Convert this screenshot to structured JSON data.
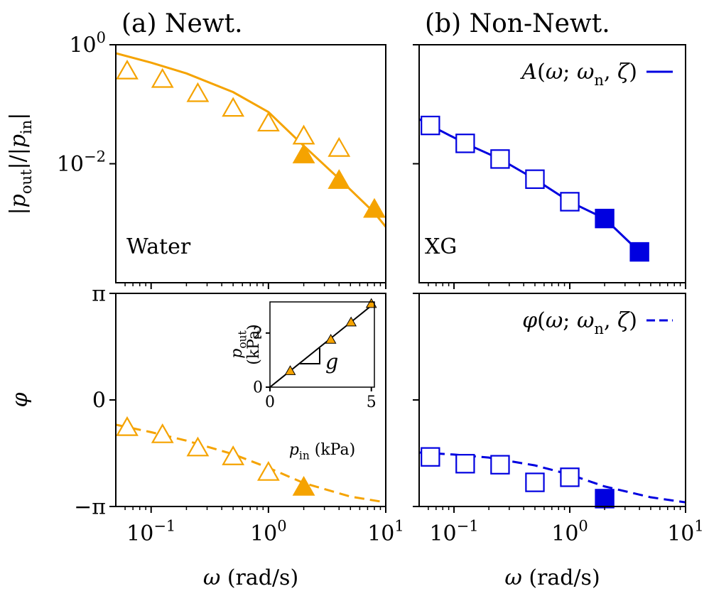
{
  "chart_data": [
    {
      "type": "line",
      "title": "(a) Newt.",
      "xscale": "log",
      "yscale": "log",
      "xlim": [
        0.05,
        10
      ],
      "ylim": [
        0.0001,
        1
      ],
      "xticks": [
        0.1,
        1,
        10
      ],
      "xtick_labels": false,
      "xminor": [
        0.06,
        0.07,
        0.08,
        0.09,
        0.2,
        0.3,
        0.4,
        0.5,
        0.6,
        0.7,
        0.8,
        0.9,
        2,
        3,
        4,
        5,
        6,
        7,
        8,
        9
      ],
      "yticks": [
        {
          "value": 1,
          "label": [
            "10",
            {
              "sup": "0"
            }
          ]
        },
        {
          "value": 0.01,
          "label": [
            "10",
            {
              "sup": "−2"
            }
          ]
        }
      ],
      "ylabel": [
        "|",
        {
          "it": "p"
        },
        {
          "sub": "out"
        },
        "|/|",
        {
          "it": "p"
        },
        {
          "sub": "in"
        },
        "|"
      ],
      "annotations": [
        {
          "text": "Water",
          "color": "#f5a300"
        }
      ],
      "series": [
        {
          "color": "#f5a300",
          "linestyle": "solid",
          "x": [
            0.05,
            0.1,
            0.2,
            0.5,
            1,
            2,
            4,
            8,
            10
          ],
          "values": [
            0.72,
            0.5,
            0.33,
            0.16,
            0.074,
            0.02,
            0.0056,
            0.0015,
            0.00087
          ]
        },
        {
          "color": "#f5a300",
          "marker": "triangle",
          "filled": false,
          "x": [
            0.0625,
            0.125,
            0.25,
            0.5,
            1,
            2,
            4
          ],
          "values": [
            0.36,
            0.26,
            0.15,
            0.085,
            0.048,
            0.029,
            0.018
          ]
        },
        {
          "color": "#f5a300",
          "marker": "triangle",
          "filled": true,
          "x": [
            2,
            4,
            8
          ],
          "values": [
            0.014,
            0.0052,
            0.0017
          ]
        }
      ]
    },
    {
      "type": "line",
      "title": "(b) Non-Newt.",
      "xscale": "log",
      "yscale": "log",
      "xlim": [
        0.05,
        10
      ],
      "ylim": [
        0.0001,
        1
      ],
      "xticks": [
        0.1,
        1,
        10
      ],
      "xtick_labels": false,
      "xminor": [
        0.06,
        0.07,
        0.08,
        0.09,
        0.2,
        0.3,
        0.4,
        0.5,
        0.6,
        0.7,
        0.8,
        0.9,
        2,
        3,
        4,
        5,
        6,
        7,
        8,
        9
      ],
      "yticks": [
        1,
        0.01
      ],
      "ytick_labels": false,
      "legend": "upper right",
      "annotations": [
        {
          "text": "XG",
          "color": "#0000e0"
        }
      ],
      "series": [
        {
          "name": [
            {
              "it": "A"
            },
            "(",
            {
              "it": "ω"
            },
            "; ",
            {
              "it": "ω"
            },
            {
              "sub": "n"
            },
            ", ",
            {
              "it": "ζ"
            },
            ")"
          ],
          "color": "#0000e0",
          "linestyle": "solid",
          "x": [
            0.05,
            0.0625,
            0.125,
            0.25,
            0.5,
            1,
            2,
            4
          ],
          "values": [
            0.056,
            0.044,
            0.022,
            0.012,
            0.0055,
            0.0023,
            0.0012,
            0.00033
          ]
        },
        {
          "color": "#0000e0",
          "marker": "square",
          "filled": false,
          "x": [
            0.0625,
            0.125,
            0.25,
            0.5,
            1
          ],
          "values": [
            0.044,
            0.022,
            0.012,
            0.0055,
            0.0023
          ]
        },
        {
          "color": "#0000e0",
          "marker": "square",
          "filled": true,
          "x": [
            2,
            4
          ],
          "values": [
            0.0012,
            0.00033
          ]
        }
      ]
    },
    {
      "type": "line",
      "xscale": "log",
      "yscale": "linear",
      "xlim": [
        0.05,
        10
      ],
      "ylim": [
        -3.14159,
        3.14159
      ],
      "xticks": [
        {
          "value": 0.1,
          "label": [
            "10",
            {
              "sup": "−1"
            }
          ]
        },
        {
          "value": 1,
          "label": [
            "10",
            {
              "sup": "0"
            }
          ]
        },
        {
          "value": 10,
          "label": [
            "10",
            {
              "sup": "1"
            }
          ]
        }
      ],
      "xminor": [
        0.06,
        0.07,
        0.08,
        0.09,
        0.2,
        0.3,
        0.4,
        0.5,
        0.6,
        0.7,
        0.8,
        0.9,
        2,
        3,
        4,
        5,
        6,
        7,
        8,
        9
      ],
      "yticks": [
        {
          "value": 3.14159,
          "label": "π"
        },
        0,
        {
          "value": -3.14159,
          "label": "−π"
        }
      ],
      "xlabel": [
        {
          "it": "ω"
        },
        " (rad/s)"
      ],
      "ylabel": [
        {
          "it": "φ"
        }
      ],
      "series": [
        {
          "color": "#f5a300",
          "linestyle": "dashed",
          "x": [
            0.05,
            0.1,
            0.2,
            0.5,
            1,
            2,
            5,
            10
          ],
          "values": [
            -0.73,
            -0.95,
            -1.2,
            -1.6,
            -2.0,
            -2.45,
            -2.85,
            -3.02
          ]
        },
        {
          "color": "#f5a300",
          "marker": "triangle",
          "filled": false,
          "x": [
            0.0625,
            0.125,
            0.25,
            0.5,
            1
          ],
          "values": [
            -0.82,
            -1.03,
            -1.42,
            -1.68,
            -2.14
          ]
        },
        {
          "color": "#f5a300",
          "marker": "triangle",
          "filled": true,
          "x": [
            2
          ],
          "values": [
            -2.58
          ]
        }
      ]
    },
    {
      "type": "line",
      "xscale": "log",
      "yscale": "linear",
      "xlim": [
        0.05,
        10
      ],
      "ylim": [
        -3.14159,
        3.14159
      ],
      "xticks": [
        {
          "value": 0.1,
          "label": [
            "10",
            {
              "sup": "−1"
            }
          ]
        },
        {
          "value": 1,
          "label": [
            "10",
            {
              "sup": "0"
            }
          ]
        },
        {
          "value": 10,
          "label": [
            "10",
            {
              "sup": "1"
            }
          ]
        }
      ],
      "xminor": [
        0.06,
        0.07,
        0.08,
        0.09,
        0.2,
        0.3,
        0.4,
        0.5,
        0.6,
        0.7,
        0.8,
        0.9,
        2,
        3,
        4,
        5,
        6,
        7,
        8,
        9
      ],
      "yticks": [
        3.14159,
        0,
        -3.14159
      ],
      "ytick_labels": false,
      "legend": "upper right",
      "xlabel": [
        {
          "it": "ω"
        },
        " (rad/s)"
      ],
      "series": [
        {
          "name": [
            {
              "it": "φ"
            },
            "(",
            {
              "it": "ω"
            },
            "; ",
            {
              "it": "ω"
            },
            {
              "sub": "n"
            },
            ", ",
            {
              "it": "ζ"
            },
            ")"
          ],
          "color": "#0000e0",
          "linestyle": "dashed",
          "x": [
            0.05,
            0.1,
            0.2,
            0.5,
            1,
            2,
            5,
            10
          ],
          "values": [
            -1.55,
            -1.61,
            -1.7,
            -1.93,
            -2.2,
            -2.55,
            -2.87,
            -3.02
          ]
        },
        {
          "color": "#0000e0",
          "marker": "square",
          "filled": false,
          "x": [
            0.0625,
            0.125,
            0.25,
            0.5,
            1
          ],
          "values": [
            -1.68,
            -1.88,
            -1.91,
            -2.43,
            -2.28
          ]
        },
        {
          "color": "#0000e0",
          "marker": "square",
          "filled": true,
          "x": [
            2
          ],
          "values": [
            -2.91
          ]
        }
      ]
    },
    {
      "type": "line",
      "xscale": "linear",
      "yscale": "linear",
      "xlim": [
        0,
        5.15
      ],
      "ylim": [
        0,
        3.15
      ],
      "xticks": [
        0,
        5
      ],
      "yticks": [
        0,
        2
      ],
      "xlabel": [
        {
          "it": "p"
        },
        {
          "sub": "in"
        },
        " (kPa)"
      ],
      "ylabel": [
        [
          {
            "it": "p"
          },
          {
            "sub": "out"
          }
        ],
        [
          "(kPa)"
        ]
      ],
      "annotations": [
        {
          "text": "g",
          "color": "#000000",
          "italic": true
        }
      ],
      "series": [
        {
          "color": "#000000",
          "linestyle": "solid",
          "x": [
            0,
            5.15
          ],
          "values": [
            0,
            3.1
          ]
        },
        {
          "color": "#f5a300",
          "edgecolor": "#000000",
          "marker": "triangle",
          "filled": true,
          "x": [
            1,
            3,
            4,
            5
          ],
          "values": [
            0.6,
            1.76,
            2.4,
            3.08
          ]
        }
      ]
    }
  ]
}
